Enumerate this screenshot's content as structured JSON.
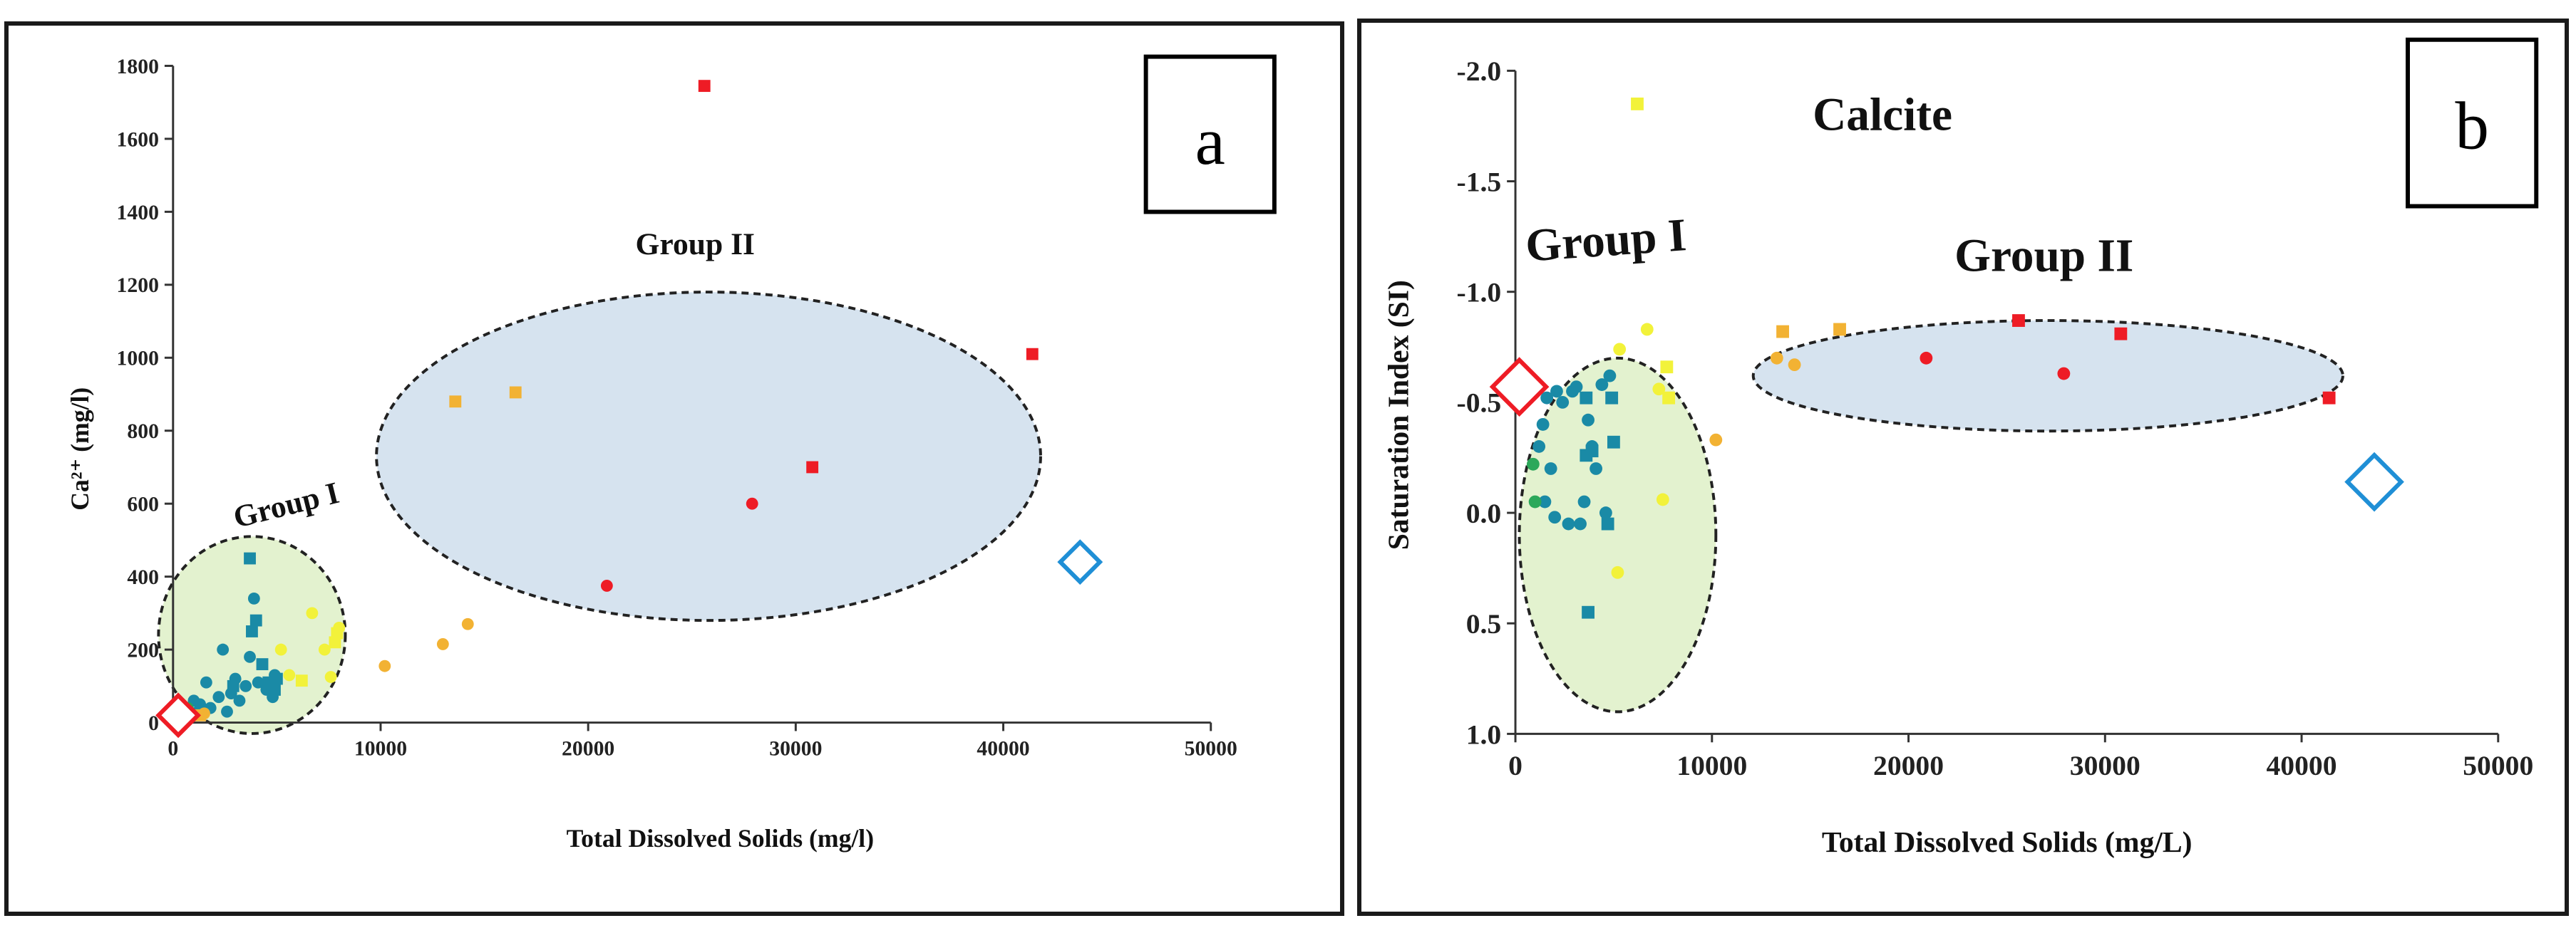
{
  "chart_data": [
    {
      "type": "scatter",
      "panel_letter": "a",
      "title": "",
      "xlabel": "Total Dissolved Solids (mg/l)",
      "ylabel": "Ca²⁺ (mg/l)",
      "xlim": [
        0,
        50000
      ],
      "ylim": [
        0,
        1800
      ],
      "xticks": [
        "0",
        "10000",
        "20000",
        "30000",
        "40000",
        "50000"
      ],
      "yticks": [
        "0",
        "200",
        "400",
        "600",
        "800",
        "1000",
        "1200",
        "1400",
        "1600",
        "1800"
      ],
      "annotations": [
        "Group I",
        "Group II"
      ],
      "colors": {
        "teal": "#1a8aa6",
        "green": "#2ca85a",
        "yellow": "#f2f23a",
        "orange": "#f2b233",
        "red": "#ee1c25",
        "blue": "#1f8fd6"
      },
      "groups": [
        {
          "name": "Group I",
          "cx": 3800,
          "cy": 240,
          "rx": 4500,
          "ry": 270,
          "fill": "#e3f2cf"
        },
        {
          "name": "Group II",
          "cx": 25800,
          "cy": 730,
          "rx": 16000,
          "ry": 450,
          "fill": "#d6e3ef"
        }
      ],
      "series": [
        {
          "name": "teal circles",
          "color": "#1a8aa6",
          "shape": "circle",
          "points": [
            [
              1000,
              60
            ],
            [
              1300,
              50
            ],
            [
              1600,
              110
            ],
            [
              1800,
              40
            ],
            [
              2200,
              70
            ],
            [
              2400,
              200
            ],
            [
              2800,
              80
            ],
            [
              3200,
              60
            ],
            [
              3500,
              100
            ],
            [
              3700,
              180
            ],
            [
              3900,
              340
            ],
            [
              4100,
              110
            ],
            [
              4500,
              90
            ],
            [
              4800,
              70
            ],
            [
              4900,
              130
            ],
            [
              1200,
              30
            ],
            [
              2600,
              30
            ],
            [
              3000,
              120
            ]
          ]
        },
        {
          "name": "teal squares",
          "color": "#1a8aa6",
          "shape": "square",
          "points": [
            [
              3700,
              450
            ],
            [
              3800,
              250
            ],
            [
              4000,
              280
            ],
            [
              4300,
              160
            ],
            [
              4600,
              110
            ],
            [
              4900,
              90
            ],
            [
              5000,
              120
            ],
            [
              2900,
              100
            ]
          ]
        },
        {
          "name": "green circles",
          "color": "#2ca85a",
          "shape": "circle",
          "points": [
            [
              700,
              40
            ],
            [
              900,
              20
            ]
          ]
        },
        {
          "name": "yellow circles",
          "color": "#f2f23a",
          "shape": "circle",
          "points": [
            [
              5200,
              200
            ],
            [
              5600,
              130
            ],
            [
              6700,
              300
            ],
            [
              7300,
              200
            ],
            [
              7600,
              125
            ],
            [
              8000,
              260
            ]
          ]
        },
        {
          "name": "yellow squares",
          "color": "#f2f23a",
          "shape": "square",
          "points": [
            [
              6200,
              115
            ],
            [
              7800,
              220
            ],
            [
              7900,
              245
            ]
          ]
        },
        {
          "name": "orange circles",
          "color": "#f2b233",
          "shape": "circle",
          "points": [
            [
              10200,
              155
            ],
            [
              13000,
              215
            ],
            [
              14200,
              270
            ],
            [
              1500,
              25
            ]
          ]
        },
        {
          "name": "orange squares",
          "color": "#f2b233",
          "shape": "square",
          "points": [
            [
              13600,
              880
            ],
            [
              16500,
              905
            ],
            [
              1300,
              20
            ]
          ]
        },
        {
          "name": "red circles",
          "color": "#ee1c25",
          "shape": "circle",
          "points": [
            [
              20900,
              375
            ],
            [
              27900,
              600
            ]
          ]
        },
        {
          "name": "red squares",
          "color": "#ee1c25",
          "shape": "square",
          "points": [
            [
              25600,
              1745
            ],
            [
              30800,
              700
            ],
            [
              41400,
              1010
            ]
          ]
        },
        {
          "name": "red diamond",
          "color": "#ee1c25",
          "shape": "diamond",
          "points": [
            [
              250,
              20
            ]
          ]
        },
        {
          "name": "blue diamond",
          "color": "#1f8fd6",
          "shape": "diamond",
          "points": [
            [
              43700,
              440
            ]
          ]
        }
      ]
    },
    {
      "type": "scatter",
      "panel_letter": "b",
      "title": "Calcite",
      "xlabel": "Total Dissolved  Solids (mg/L)",
      "ylabel": "Saturation Index (SI)",
      "xlim": [
        0,
        50000
      ],
      "ylim": [
        1.0,
        -2.0
      ],
      "y_axis_inverted": true,
      "xticks": [
        "0",
        "10000",
        "20000",
        "30000",
        "40000",
        "50000"
      ],
      "yticks": [
        "-2.0",
        "-1.5",
        "-1.0",
        "-0.5",
        "0.0",
        "0.5",
        "1.0"
      ],
      "annotations": [
        "Group I",
        "Group II"
      ],
      "colors": {
        "teal": "#1a8aa6",
        "green": "#2ca85a",
        "yellow": "#f2f23a",
        "orange": "#f2b233",
        "red": "#ee1c25",
        "blue": "#1f8fd6"
      },
      "groups": [
        {
          "name": "Group I",
          "cx": 5200,
          "cy": 0.1,
          "rx": 5000,
          "ry": 0.8,
          "fill": "#e3f2cf"
        },
        {
          "name": "Group II",
          "cx": 27100,
          "cy": -0.62,
          "rx": 15000,
          "ry": 0.25,
          "fill": "#d6e3ef"
        }
      ],
      "series": [
        {
          "name": "teal circles",
          "color": "#1a8aa6",
          "shape": "circle",
          "points": [
            [
              1200,
              -0.3
            ],
            [
              1400,
              -0.4
            ],
            [
              1600,
              -0.52
            ],
            [
              1800,
              -0.2
            ],
            [
              2100,
              -0.55
            ],
            [
              2400,
              -0.5
            ],
            [
              2700,
              0.05
            ],
            [
              2900,
              -0.55
            ],
            [
              3100,
              -0.57
            ],
            [
              3300,
              0.05
            ],
            [
              3500,
              -0.05
            ],
            [
              3700,
              -0.42
            ],
            [
              3900,
              -0.3
            ],
            [
              4100,
              -0.2
            ],
            [
              4400,
              -0.58
            ],
            [
              4600,
              0.0
            ],
            [
              4800,
              -0.62
            ],
            [
              1500,
              -0.05
            ],
            [
              2000,
              0.02
            ]
          ]
        },
        {
          "name": "teal squares",
          "color": "#1a8aa6",
          "shape": "square",
          "points": [
            [
              3700,
              0.45
            ],
            [
              3600,
              -0.26
            ],
            [
              3900,
              -0.28
            ],
            [
              4700,
              0.05
            ],
            [
              4900,
              -0.52
            ],
            [
              5000,
              -0.32
            ],
            [
              3600,
              -0.52
            ]
          ]
        },
        {
          "name": "green circles",
          "color": "#2ca85a",
          "shape": "circle",
          "points": [
            [
              900,
              -0.22
            ],
            [
              1000,
              -0.05
            ]
          ]
        },
        {
          "name": "yellow circles",
          "color": "#f2f23a",
          "shape": "circle",
          "points": [
            [
              5300,
              -0.74
            ],
            [
              5200,
              0.27
            ],
            [
              6700,
              -0.83
            ],
            [
              7300,
              -0.56
            ],
            [
              7500,
              -0.06
            ]
          ]
        },
        {
          "name": "yellow squares",
          "color": "#f2f23a",
          "shape": "square",
          "points": [
            [
              6200,
              -1.85
            ],
            [
              7700,
              -0.66
            ],
            [
              7800,
              -0.52
            ]
          ]
        },
        {
          "name": "orange circles",
          "color": "#f2b233",
          "shape": "circle",
          "points": [
            [
              10200,
              -0.33
            ],
            [
              13300,
              -0.7
            ],
            [
              14200,
              -0.67
            ]
          ]
        },
        {
          "name": "orange squares",
          "color": "#f2b233",
          "shape": "square",
          "points": [
            [
              13600,
              -0.82
            ],
            [
              16500,
              -0.83
            ]
          ]
        },
        {
          "name": "red circles",
          "color": "#ee1c25",
          "shape": "circle",
          "points": [
            [
              20900,
              -0.7
            ],
            [
              27900,
              -0.63
            ]
          ]
        },
        {
          "name": "red squares",
          "color": "#ee1c25",
          "shape": "square",
          "points": [
            [
              25600,
              -0.87
            ],
            [
              30800,
              -0.81
            ],
            [
              41400,
              -0.52
            ]
          ]
        },
        {
          "name": "red diamond",
          "color": "#ee1c25",
          "shape": "diamond",
          "points": [
            [
              200,
              -0.57
            ]
          ]
        },
        {
          "name": "blue diamond",
          "color": "#1f8fd6",
          "shape": "diamond",
          "points": [
            [
              43700,
              -0.14
            ]
          ]
        }
      ]
    }
  ]
}
